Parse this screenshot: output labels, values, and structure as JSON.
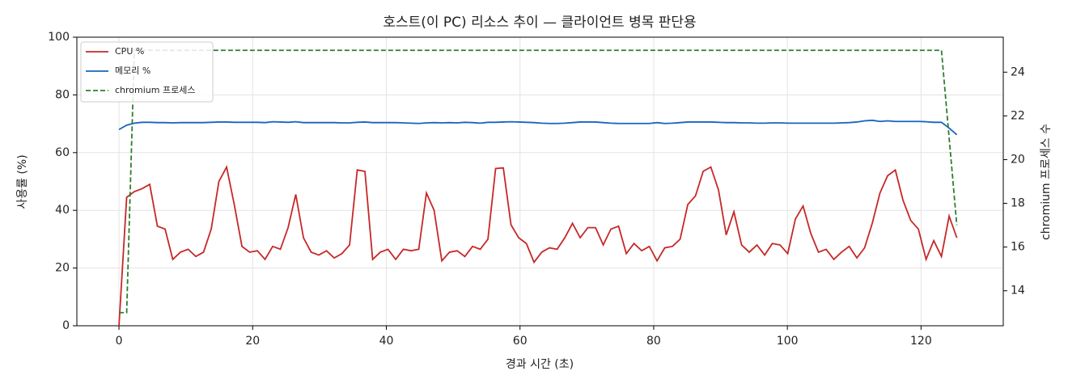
{
  "chart_data": {
    "type": "line",
    "title": "호스트(이 PC) 리소스 추이 — 클라이언트 병목 판단용",
    "xlabel": "경과 시간 (초)",
    "ylabel": "사용률 (%)",
    "y2label": "chromium 프로세스 수",
    "xlim": [
      -6.3,
      132.3
    ],
    "xticks": [
      0,
      20,
      40,
      60,
      80,
      100,
      120
    ],
    "ylim": [
      0,
      100
    ],
    "yticks": [
      0,
      20,
      40,
      60,
      80,
      100
    ],
    "y2lim": [
      12.4,
      25.6
    ],
    "y2ticks": [
      14,
      16,
      18,
      20,
      22,
      24
    ],
    "grid": true,
    "legend": "upper left",
    "x": [
      0,
      1.15,
      2.3,
      3.45,
      4.6,
      5.75,
      6.9,
      8.05,
      9.2,
      10.35,
      11.5,
      12.65,
      13.8,
      14.95,
      16.1,
      17.25,
      18.4,
      19.55,
      20.7,
      21.85,
      23,
      24.15,
      25.3,
      26.45,
      27.6,
      28.75,
      29.9,
      31.05,
      32.2,
      33.35,
      34.5,
      35.65,
      36.8,
      37.95,
      39.1,
      40.25,
      41.4,
      42.55,
      43.7,
      44.85,
      46,
      47.15,
      48.3,
      49.45,
      50.6,
      51.75,
      52.9,
      54.05,
      55.2,
      56.35,
      57.5,
      58.65,
      59.8,
      60.95,
      62.1,
      63.25,
      64.4,
      65.55,
      66.7,
      67.85,
      69,
      70.15,
      71.3,
      72.45,
      73.6,
      74.75,
      75.9,
      77.05,
      78.2,
      79.35,
      80.5,
      81.65,
      82.8,
      83.95,
      85.1,
      86.25,
      87.4,
      88.55,
      89.7,
      90.85,
      92,
      93.15,
      94.3,
      95.45,
      96.6,
      97.75,
      98.9,
      100.05,
      101.2,
      102.35,
      103.5,
      104.65,
      105.8,
      106.95,
      108.1,
      109.25,
      110.4,
      111.55,
      112.7,
      113.85,
      115,
      116.15,
      117.3,
      118.45,
      119.6,
      120.75,
      121.9,
      123.05,
      124.2,
      125.35
    ],
    "series": [
      {
        "name": "CPU %",
        "color": "#c62828",
        "dash": false,
        "axis": "y",
        "values": [
          0,
          44.5,
          46.5,
          47.5,
          49,
          34.5,
          33.5,
          23,
          25.5,
          26.5,
          24,
          25.5,
          33.5,
          50,
          55,
          42,
          27.5,
          25.5,
          26,
          23,
          27.5,
          26.5,
          34,
          45.5,
          30.5,
          25.5,
          24.5,
          26,
          23.5,
          25,
          28,
          54,
          53.5,
          23,
          25.5,
          26.5,
          23,
          26.5,
          26,
          26.5,
          46,
          40,
          22.5,
          25.5,
          26,
          24,
          27.5,
          26.5,
          30,
          54.5,
          54.7,
          35,
          30.5,
          28.5,
          22,
          25.5,
          27,
          26.5,
          30.5,
          35.5,
          30.5,
          34,
          34,
          28,
          33.5,
          34.5,
          25,
          28.5,
          26,
          27.5,
          22.5,
          27,
          27.5,
          30,
          42,
          45,
          53.5,
          55,
          47,
          31.5,
          39.5,
          28,
          25.5,
          28,
          24.5,
          28.5,
          28,
          25,
          37,
          41.5,
          32,
          25.5,
          26.5,
          23,
          25.5,
          27.5,
          23.5,
          27,
          35.5,
          46,
          52,
          54,
          43.5,
          36.5,
          33.5,
          23,
          29.5,
          24,
          38,
          30.5
        ]
      },
      {
        "name": "메모리 %",
        "color": "#1565c0",
        "dash": false,
        "axis": "y",
        "values": [
          68,
          69.5,
          70.2,
          70.5,
          70.5,
          70.4,
          70.4,
          70.3,
          70.4,
          70.4,
          70.4,
          70.4,
          70.5,
          70.6,
          70.6,
          70.5,
          70.5,
          70.5,
          70.5,
          70.4,
          70.7,
          70.6,
          70.5,
          70.7,
          70.4,
          70.4,
          70.4,
          70.4,
          70.4,
          70.3,
          70.3,
          70.5,
          70.6,
          70.4,
          70.4,
          70.4,
          70.4,
          70.3,
          70.2,
          70.1,
          70.3,
          70.4,
          70.3,
          70.4,
          70.3,
          70.5,
          70.4,
          70.2,
          70.5,
          70.5,
          70.6,
          70.7,
          70.6,
          70.5,
          70.4,
          70.2,
          70.1,
          70.1,
          70.2,
          70.4,
          70.6,
          70.6,
          70.6,
          70.4,
          70.2,
          70.1,
          70.1,
          70.1,
          70.1,
          70.1,
          70.4,
          70.1,
          70.2,
          70.4,
          70.6,
          70.6,
          70.6,
          70.6,
          70.5,
          70.4,
          70.4,
          70.3,
          70.3,
          70.2,
          70.2,
          70.3,
          70.3,
          70.2,
          70.2,
          70.2,
          70.2,
          70.2,
          70.2,
          70.2,
          70.3,
          70.4,
          70.6,
          71,
          71.2,
          70.8,
          71,
          70.8,
          70.8,
          70.8,
          70.8,
          70.7,
          70.5,
          70.5,
          68.5,
          66.2
        ]
      },
      {
        "name": "chromium 프로세스",
        "color": "#2e7d32",
        "dash": true,
        "axis": "y2",
        "values": [
          13,
          13,
          25,
          25,
          25,
          25,
          25,
          25,
          25,
          25,
          25,
          25,
          25,
          25,
          25,
          25,
          25,
          25,
          25,
          25,
          25,
          25,
          25,
          25,
          25,
          25,
          25,
          25,
          25,
          25,
          25,
          25,
          25,
          25,
          25,
          25,
          25,
          25,
          25,
          25,
          25,
          25,
          25,
          25,
          25,
          25,
          25,
          25,
          25,
          25,
          25,
          25,
          25,
          25,
          25,
          25,
          25,
          25,
          25,
          25,
          25,
          25,
          25,
          25,
          25,
          25,
          25,
          25,
          25,
          25,
          25,
          25,
          25,
          25,
          25,
          25,
          25,
          25,
          25,
          25,
          25,
          25,
          25,
          25,
          25,
          25,
          25,
          25,
          25,
          25,
          25,
          25,
          25,
          25,
          25,
          25,
          25,
          25,
          25,
          25,
          25,
          25,
          25,
          25,
          25,
          25,
          25,
          25,
          21,
          17
        ]
      }
    ]
  }
}
